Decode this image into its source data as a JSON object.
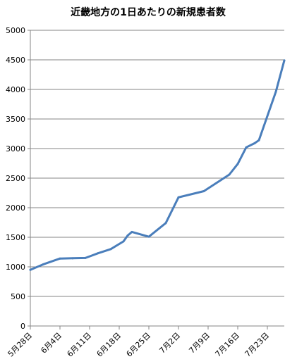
{
  "chart_data": {
    "type": "line",
    "title": "近畿地方の1日あたりの新規患者数",
    "xlabel": "",
    "ylabel": "",
    "ylim": [
      0,
      5000
    ],
    "yticks": [
      0,
      500,
      1000,
      1500,
      2000,
      2500,
      3000,
      3500,
      4000,
      4500,
      5000
    ],
    "xtick_labels": [
      "5月28日",
      "6月4日",
      "6月11日",
      "6月18日",
      "6月25日",
      "7月2日",
      "7月9日",
      "7月16日",
      "7月23日"
    ],
    "x_start": "5月28日",
    "x_end": "7月27日",
    "grid": "horizontal",
    "legend": "none",
    "line_color": "#4a7ebb",
    "series": [
      {
        "x": [
          "5月28日",
          "5月31日",
          "6月4日",
          "6月7日",
          "6月10日",
          "6月13日",
          "6月16日",
          "6月19日",
          "6月20日",
          "6月21日",
          "6月25日",
          "6月29日",
          "7月2日",
          "7月8日",
          "7月14日",
          "7月16日",
          "7月18日",
          "7月20日",
          "7月21日",
          "7月25日",
          "7月27日"
        ],
        "values": [
          950,
          1040,
          1140,
          1145,
          1150,
          1230,
          1300,
          1430,
          1530,
          1590,
          1510,
          1740,
          2175,
          2280,
          2560,
          2740,
          3020,
          3090,
          3140,
          3960,
          4490
        ]
      }
    ]
  }
}
